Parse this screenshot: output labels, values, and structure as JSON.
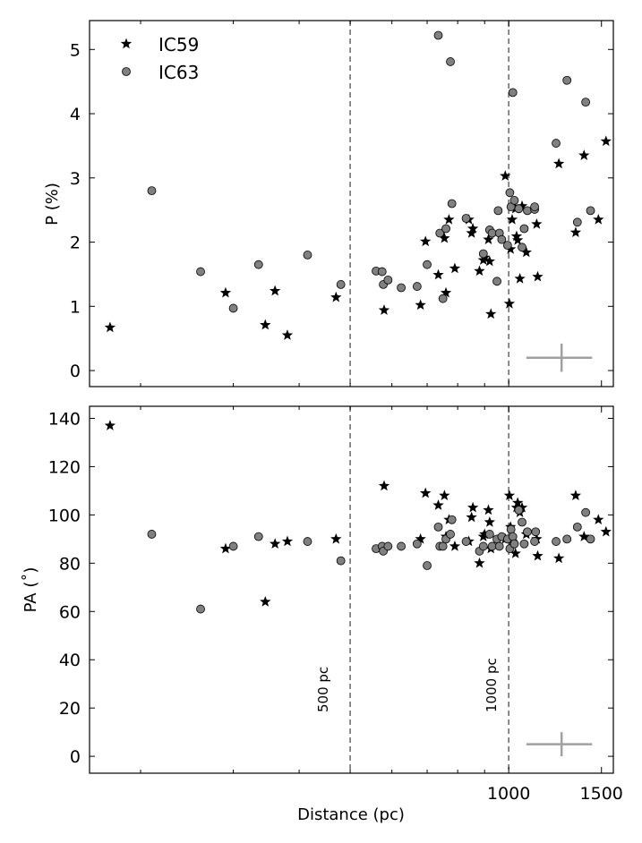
{
  "chart_data": [
    {
      "type": "scatter",
      "ylabel": "P (%)",
      "ylim": [
        -0.25,
        5.45
      ],
      "xlim": [
        160,
        1580
      ],
      "x_scale": "log",
      "yticks": [
        0,
        1,
        2,
        3,
        4,
        5
      ],
      "legend_position": "top-left",
      "series": [
        {
          "name": "IC59",
          "marker": "star",
          "color": "#000000",
          "points": [
            [
              175,
              0.67
            ],
            [
              290,
              1.21
            ],
            [
              345,
              0.71
            ],
            [
              360,
              1.24
            ],
            [
              380,
              0.55
            ],
            [
              470,
              1.14
            ],
            [
              580,
              0.94
            ],
            [
              680,
              1.02
            ],
            [
              695,
              2.01
            ],
            [
              735,
              1.49
            ],
            [
              755,
              2.06
            ],
            [
              760,
              1.21
            ],
            [
              770,
              2.35
            ],
            [
              790,
              1.59
            ],
            [
              840,
              2.35
            ],
            [
              850,
              2.14
            ],
            [
              855,
              2.21
            ],
            [
              880,
              1.55
            ],
            [
              895,
              1.72
            ],
            [
              900,
              1.76
            ],
            [
              915,
              2.04
            ],
            [
              920,
              1.7
            ],
            [
              925,
              0.88
            ],
            [
              985,
              3.03
            ],
            [
              1003,
              1.04
            ],
            [
              1008,
              1.89
            ],
            [
              1015,
              2.35
            ],
            [
              1030,
              2.52
            ],
            [
              1035,
              2.09
            ],
            [
              1040,
              2.03
            ],
            [
              1050,
              1.43
            ],
            [
              1060,
              2.56
            ],
            [
              1080,
              1.84
            ],
            [
              1130,
              2.28
            ],
            [
              1135,
              1.46
            ],
            [
              1245,
              3.22
            ],
            [
              1340,
              2.15
            ],
            [
              1390,
              3.35
            ],
            [
              1480,
              2.35
            ],
            [
              1530,
              3.57
            ]
          ]
        },
        {
          "name": "IC63",
          "marker": "circle",
          "color": "#808080",
          "points": [
            [
              210,
              2.8
            ],
            [
              260,
              1.54
            ],
            [
              300,
              0.97
            ],
            [
              335,
              1.65
            ],
            [
              415,
              1.8
            ],
            [
              480,
              1.34
            ],
            [
              560,
              1.55
            ],
            [
              575,
              1.54
            ],
            [
              578,
              1.34
            ],
            [
              590,
              1.41
            ],
            [
              625,
              1.29
            ],
            [
              670,
              1.31
            ],
            [
              700,
              1.65
            ],
            [
              735,
              5.22
            ],
            [
              740,
              2.14
            ],
            [
              750,
              1.12
            ],
            [
              760,
              2.21
            ],
            [
              775,
              4.81
            ],
            [
              780,
              2.6
            ],
            [
              830,
              2.37
            ],
            [
              895,
              1.82
            ],
            [
              920,
              2.19
            ],
            [
              930,
              2.14
            ],
            [
              950,
              1.39
            ],
            [
              955,
              2.49
            ],
            [
              960,
              2.14
            ],
            [
              970,
              2.04
            ],
            [
              995,
              1.95
            ],
            [
              1005,
              2.77
            ],
            [
              1010,
              2.55
            ],
            [
              1018,
              4.33
            ],
            [
              1025,
              2.65
            ],
            [
              1045,
              2.52
            ],
            [
              1060,
              1.92
            ],
            [
              1070,
              2.21
            ],
            [
              1085,
              2.49
            ],
            [
              1120,
              2.51
            ],
            [
              1120,
              2.55
            ],
            [
              1230,
              3.54
            ],
            [
              1290,
              4.52
            ],
            [
              1350,
              2.31
            ],
            [
              1400,
              4.18
            ],
            [
              1430,
              2.49
            ]
          ]
        }
      ],
      "error_bar": {
        "x": 1260,
        "y": 0.2,
        "xerr": 180,
        "yerr": 0.22
      }
    },
    {
      "type": "scatter",
      "xlabel": "Distance (pc)",
      "ylabel": "PA (˚)",
      "ylim": [
        -7,
        145
      ],
      "xlim": [
        160,
        1580
      ],
      "x_scale": "log",
      "yticks": [
        0,
        20,
        40,
        60,
        80,
        100,
        120,
        140
      ],
      "xtick_labels": [
        "1000",
        "1500"
      ],
      "xticks": [
        1000,
        1500
      ],
      "vertical_line_labels": [
        "500 pc",
        "1000 pc"
      ],
      "series": [
        {
          "name": "IC59",
          "marker": "star",
          "color": "#000000",
          "points": [
            [
              175,
              137
            ],
            [
              290,
              86
            ],
            [
              345,
              64
            ],
            [
              360,
              88
            ],
            [
              380,
              89
            ],
            [
              470,
              90
            ],
            [
              580,
              112
            ],
            [
              680,
              90
            ],
            [
              695,
              109
            ],
            [
              735,
              104
            ],
            [
              755,
              108
            ],
            [
              760,
              91
            ],
            [
              770,
              98
            ],
            [
              790,
              87
            ],
            [
              840,
              89
            ],
            [
              850,
              99
            ],
            [
              855,
              103
            ],
            [
              880,
              80
            ],
            [
              895,
              91
            ],
            [
              900,
              92
            ],
            [
              915,
              102
            ],
            [
              920,
              97
            ],
            [
              925,
              86
            ],
            [
              985,
              90
            ],
            [
              1003,
              108
            ],
            [
              1008,
              95
            ],
            [
              1015,
              89
            ],
            [
              1030,
              84
            ],
            [
              1035,
              103
            ],
            [
              1040,
              105
            ],
            [
              1050,
              101
            ],
            [
              1060,
              103
            ],
            [
              1080,
              92
            ],
            [
              1130,
              90
            ],
            [
              1135,
              83
            ],
            [
              1245,
              82
            ],
            [
              1340,
              108
            ],
            [
              1390,
              91
            ],
            [
              1480,
              98
            ],
            [
              1530,
              93
            ]
          ]
        },
        {
          "name": "IC63",
          "marker": "circle",
          "color": "#808080",
          "points": [
            [
              210,
              92
            ],
            [
              260,
              61
            ],
            [
              300,
              87
            ],
            [
              335,
              91
            ],
            [
              415,
              89
            ],
            [
              480,
              81
            ],
            [
              560,
              86
            ],
            [
              575,
              87
            ],
            [
              578,
              85
            ],
            [
              590,
              87
            ],
            [
              625,
              87
            ],
            [
              670,
              88
            ],
            [
              700,
              79
            ],
            [
              735,
              95
            ],
            [
              740,
              87
            ],
            [
              750,
              87
            ],
            [
              760,
              90
            ],
            [
              775,
              92
            ],
            [
              780,
              98
            ],
            [
              830,
              89
            ],
            [
              880,
              85
            ],
            [
              895,
              87
            ],
            [
              920,
              92
            ],
            [
              930,
              87
            ],
            [
              950,
              90
            ],
            [
              960,
              87
            ],
            [
              970,
              91
            ],
            [
              995,
              90
            ],
            [
              1005,
              86
            ],
            [
              1010,
              94
            ],
            [
              1018,
              91
            ],
            [
              1025,
              88
            ],
            [
              1045,
              102
            ],
            [
              1060,
              97
            ],
            [
              1070,
              88
            ],
            [
              1085,
              93
            ],
            [
              1120,
              89
            ],
            [
              1125,
              93
            ],
            [
              1230,
              89
            ],
            [
              1290,
              90
            ],
            [
              1350,
              95
            ],
            [
              1400,
              101
            ],
            [
              1430,
              90
            ]
          ]
        }
      ],
      "error_bar": {
        "x": 1260,
        "y": 5,
        "xerr": 180,
        "yerr": 5
      }
    }
  ]
}
